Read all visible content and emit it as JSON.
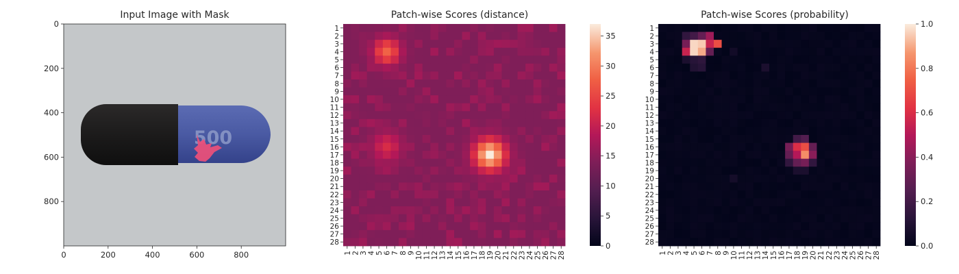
{
  "chart_data": [
    {
      "type": "image",
      "title": "Input Image with Mask",
      "xlim": [
        0,
        1000
      ],
      "ylim": [
        1000,
        0
      ],
      "xticks": [
        "0",
        "200",
        "400",
        "600",
        "800"
      ],
      "yticks": [
        "0",
        "200",
        "400",
        "600",
        "800"
      ],
      "content": {
        "object": "capsule",
        "capsule_left_color": "#1f1d1d",
        "capsule_right_color": "#4d5ea8",
        "background_color": "#c3c7c9",
        "mask_color": "#e8507a",
        "printed_text": "500"
      }
    },
    {
      "type": "heatmap",
      "title": "Patch-wise Scores (distance)",
      "rows": [
        "1",
        "2",
        "3",
        "4",
        "5",
        "6",
        "7",
        "8",
        "9",
        "10",
        "11",
        "12",
        "13",
        "14",
        "15",
        "16",
        "17",
        "18",
        "19",
        "20",
        "21",
        "22",
        "23",
        "24",
        "25",
        "26",
        "27",
        "28"
      ],
      "cols": [
        "1",
        "2",
        "3",
        "4",
        "5",
        "6",
        "7",
        "8",
        "9",
        "10",
        "11",
        "12",
        "13",
        "14",
        "15",
        "16",
        "17",
        "18",
        "19",
        "20",
        "21",
        "22",
        "23",
        "24",
        "25",
        "26",
        "27",
        "28"
      ],
      "colormap": "rocket",
      "vmin": 0,
      "vmax": 37,
      "colorbar_ticks": [
        "0",
        "5",
        "10",
        "15",
        "20",
        "25",
        "30",
        "35"
      ],
      "baseline": 14,
      "hotspots": [
        {
          "row": 17,
          "col": 19,
          "value": 37,
          "spread": 1.4
        },
        {
          "row": 4,
          "col": 6,
          "value": 28,
          "spread": 1.2
        },
        {
          "row": 16,
          "col": 6,
          "value": 22,
          "spread": 1.3
        }
      ]
    },
    {
      "type": "heatmap",
      "title": "Patch-wise Scores (probability)",
      "rows": [
        "1",
        "2",
        "3",
        "4",
        "5",
        "6",
        "7",
        "8",
        "9",
        "10",
        "11",
        "12",
        "13",
        "14",
        "15",
        "16",
        "17",
        "18",
        "19",
        "20",
        "21",
        "22",
        "23",
        "24",
        "25",
        "26",
        "27",
        "28"
      ],
      "cols": [
        "1",
        "2",
        "3",
        "4",
        "5",
        "6",
        "7",
        "8",
        "9",
        "10",
        "11",
        "12",
        "13",
        "14",
        "15",
        "16",
        "17",
        "18",
        "19",
        "20",
        "21",
        "22",
        "23",
        "24",
        "25",
        "26",
        "27",
        "28"
      ],
      "colormap": "rocket",
      "vmin": 0,
      "vmax": 1,
      "colorbar_ticks": [
        "0.0",
        "0.2",
        "0.4",
        "0.6",
        "0.8",
        "1.0"
      ],
      "baseline": 0,
      "hotspots": [
        {
          "row": 3,
          "col": 5,
          "value": 0.97
        },
        {
          "row": 3,
          "col": 6,
          "value": 0.95
        },
        {
          "row": 4,
          "col": 5,
          "value": 0.97
        },
        {
          "row": 4,
          "col": 6,
          "value": 0.9
        },
        {
          "row": 3,
          "col": 7,
          "value": 0.55
        },
        {
          "row": 4,
          "col": 4,
          "value": 0.55
        },
        {
          "row": 3,
          "col": 4,
          "value": 0.35
        },
        {
          "row": 2,
          "col": 7,
          "value": 0.45
        },
        {
          "row": 3,
          "col": 8,
          "value": 0.7
        },
        {
          "row": 4,
          "col": 7,
          "value": 0.3
        },
        {
          "row": 2,
          "col": 5,
          "value": 0.2
        },
        {
          "row": 2,
          "col": 6,
          "value": 0.3
        },
        {
          "row": 2,
          "col": 4,
          "value": 0.15
        },
        {
          "row": 5,
          "col": 5,
          "value": 0.12
        },
        {
          "row": 5,
          "col": 6,
          "value": 0.14
        },
        {
          "row": 5,
          "col": 4,
          "value": 0.08
        },
        {
          "row": 6,
          "col": 5,
          "value": 0.1
        },
        {
          "row": 6,
          "col": 6,
          "value": 0.12
        },
        {
          "row": 16,
          "col": 18,
          "value": 0.6
        },
        {
          "row": 16,
          "col": 19,
          "value": 0.7
        },
        {
          "row": 17,
          "col": 19,
          "value": 0.85
        },
        {
          "row": 17,
          "col": 18,
          "value": 0.5
        },
        {
          "row": 16,
          "col": 17,
          "value": 0.35
        },
        {
          "row": 17,
          "col": 17,
          "value": 0.3
        },
        {
          "row": 18,
          "col": 18,
          "value": 0.3
        },
        {
          "row": 18,
          "col": 19,
          "value": 0.35
        },
        {
          "row": 17,
          "col": 20,
          "value": 0.4
        },
        {
          "row": 16,
          "col": 20,
          "value": 0.3
        },
        {
          "row": 15,
          "col": 18,
          "value": 0.2
        },
        {
          "row": 15,
          "col": 19,
          "value": 0.25
        },
        {
          "row": 18,
          "col": 17,
          "value": 0.15
        },
        {
          "row": 18,
          "col": 20,
          "value": 0.15
        },
        {
          "row": 19,
          "col": 18,
          "value": 0.08
        },
        {
          "row": 19,
          "col": 19,
          "value": 0.08
        },
        {
          "row": 6,
          "col": 14,
          "value": 0.08
        },
        {
          "row": 4,
          "col": 10,
          "value": 0.05
        },
        {
          "row": 20,
          "col": 10,
          "value": 0.06
        }
      ]
    }
  ]
}
